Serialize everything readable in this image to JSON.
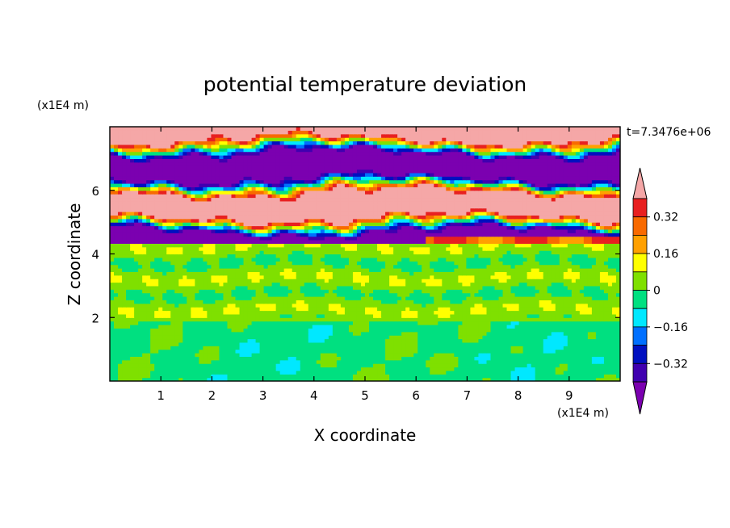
{
  "chart_data": {
    "type": "heatmap",
    "title": "potential temperature deviation",
    "xlabel": "X coordinate",
    "ylabel": "Z coordinate",
    "x_unit": "(x1E4 m)",
    "y_unit": "(x1E4 m)",
    "time_label": "t=7.3476e+06",
    "xlim": [
      0,
      10
    ],
    "ylim": [
      0,
      8
    ],
    "x_ticks": [
      "1",
      "2",
      "3",
      "4",
      "5",
      "6",
      "7",
      "8",
      "9"
    ],
    "y_ticks": [
      "2",
      "4",
      "6"
    ],
    "colorbar": {
      "labels": [
        "0.32",
        "0.16",
        "0",
        "−0.16",
        "−0.32"
      ],
      "label_values": [
        0.32,
        0.16,
        0,
        -0.16,
        -0.32
      ],
      "levels_top_to_bottom": [
        ">0.40",
        "0.32",
        "0.24",
        "0.16",
        "0.08",
        "0",
        "-0.08",
        "-0.16",
        "-0.24",
        "-0.32",
        "<-0.40"
      ],
      "colors_top_to_bottom": [
        "#f5a7a7",
        "#e82020",
        "#f86a00",
        "#ffa000",
        "#ffff00",
        "#7fe000",
        "#00e080",
        "#00e8ff",
        "#0070ff",
        "#0010c0",
        "#4000b0",
        "#7b00b0"
      ],
      "extend": "both"
    },
    "field_summary": {
      "lower_layer": "z 0 to 2: mostly -0.08 to 0 (green/teal) with turbulent eddies",
      "middle_layer": "z 2 to 4.3: mostly 0 to 0.08 (light green)",
      "upper_layer": "z 4.3 to 8: alternating bands of >0.40 (pink) and <-0.40 (purple)"
    }
  }
}
